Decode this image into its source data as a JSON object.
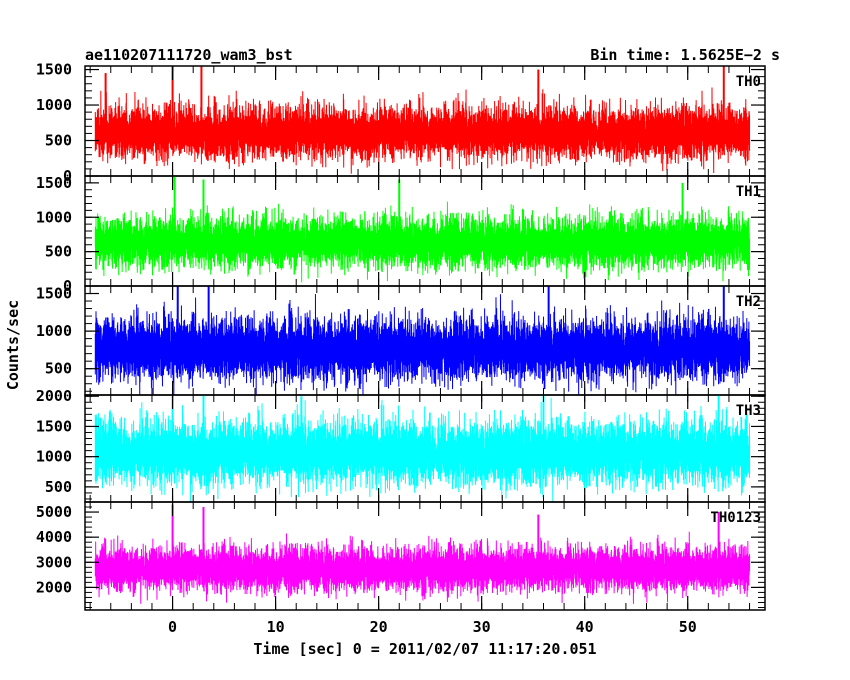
{
  "header": {
    "left": "ae110207111720_wam3_bst",
    "right": "Bin time: 1.5625E−2 s"
  },
  "chart_data": {
    "type": "line",
    "xlabel": "Time [sec] 0 = 2011/02/07 11:17:20.051",
    "ylabel": "Counts/sec",
    "xlim": [
      -8.5,
      57.5
    ],
    "x_ticks": [
      0,
      10,
      20,
      30,
      40,
      50
    ],
    "x_tick_labels": [
      "0",
      "10",
      "20",
      "30",
      "40",
      "50"
    ],
    "time_range": [
      -7.5,
      56
    ],
    "bin_time": 0.015625,
    "panels": [
      {
        "name": "TH0",
        "color": "#ff0000",
        "ylim": [
          0,
          1550
        ],
        "y_ticks": [
          0,
          500,
          1000,
          1500
        ],
        "y_tick_labels": [
          "0",
          "500",
          "1000",
          "1500"
        ],
        "baseline": 600,
        "typical_range": [
          100,
          1150
        ],
        "spikes": [
          {
            "x": 0,
            "y": 1550
          },
          {
            "x": 2.8,
            "y": 1550
          },
          {
            "x": 35.5,
            "y": 1500
          },
          {
            "x": 53.5,
            "y": 1550
          },
          {
            "x": -6.5,
            "y": 1450
          }
        ]
      },
      {
        "name": "TH1",
        "color": "#00ff00",
        "ylim": [
          0,
          1600
        ],
        "y_ticks": [
          0,
          500,
          1000,
          1500
        ],
        "y_tick_labels": [
          "0",
          "500",
          "1000",
          "1500"
        ],
        "baseline": 620,
        "typical_range": [
          100,
          1150
        ],
        "spikes": [
          {
            "x": 0.2,
            "y": 1600
          },
          {
            "x": 3.0,
            "y": 1550
          },
          {
            "x": 22,
            "y": 1550
          },
          {
            "x": 49.5,
            "y": 1500
          }
        ]
      },
      {
        "name": "TH2",
        "color": "#0000ff",
        "ylim": [
          150,
          1600
        ],
        "y_ticks": [
          500,
          1000,
          1500
        ],
        "y_tick_labels": [
          "500",
          "1000",
          "1500"
        ],
        "baseline": 750,
        "typical_range": [
          250,
          1400
        ],
        "spikes": [
          {
            "x": 0.5,
            "y": 1600
          },
          {
            "x": 3.5,
            "y": 1600
          },
          {
            "x": 36.5,
            "y": 1600
          },
          {
            "x": 53.5,
            "y": 1600
          }
        ]
      },
      {
        "name": "TH3",
        "color": "#00ffff",
        "ylim": [
          250,
          2020
        ],
        "y_ticks": [
          500,
          1000,
          1500,
          2000
        ],
        "y_tick_labels": [
          "500",
          "1000",
          "1500",
          "2000"
        ],
        "baseline": 1050,
        "typical_range": [
          400,
          1900
        ],
        "spikes": [
          {
            "x": 0,
            "y": 2020
          },
          {
            "x": 3,
            "y": 2020
          },
          {
            "x": 12.5,
            "y": 2000
          },
          {
            "x": 36,
            "y": 2020
          },
          {
            "x": 53,
            "y": 2020
          }
        ]
      },
      {
        "name": "TH0123",
        "color": "#ff00ff",
        "ylim": [
          1100,
          5400
        ],
        "y_ticks": [
          2000,
          3000,
          4000,
          5000
        ],
        "y_tick_labels": [
          "2000",
          "3000",
          "4000",
          "5000"
        ],
        "baseline": 2700,
        "typical_range": [
          1600,
          4100
        ],
        "spikes": [
          {
            "x": 0,
            "y": 5300
          },
          {
            "x": 3,
            "y": 5200
          },
          {
            "x": 35.5,
            "y": 4900
          },
          {
            "x": 53,
            "y": 5000
          }
        ]
      }
    ]
  }
}
